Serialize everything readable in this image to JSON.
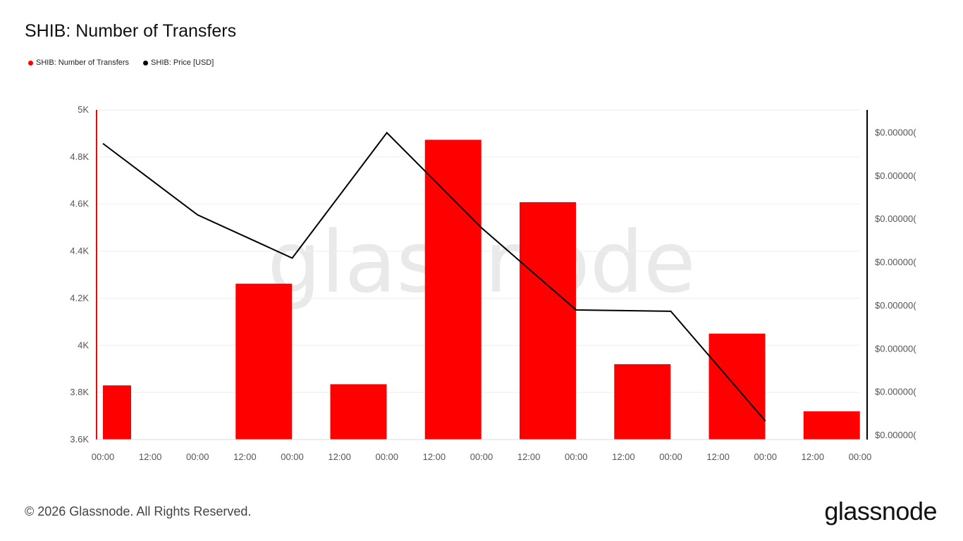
{
  "title": "SHIB: Number of Transfers",
  "legend": [
    {
      "label": "SHIB: Number of Transfers",
      "color": "#ff0000"
    },
    {
      "label": "SHIB: Price [USD]",
      "color": "#000000"
    }
  ],
  "watermark": "glassnode",
  "footer": {
    "copyright": "© 2026 Glassnode. All Rights Reserved.",
    "logo": "glassnode"
  },
  "chart_data": {
    "type": "bar",
    "title": "SHIB: Number of Transfers",
    "x_ticks": [
      "00:00",
      "12:00",
      "00:00",
      "12:00",
      "00:00",
      "12:00",
      "00:00",
      "12:00",
      "00:00",
      "12:00",
      "00:00",
      "12:00",
      "00:00",
      "12:00",
      "00:00",
      "12:00",
      "00:00"
    ],
    "x_range_hours": [
      0,
      192
    ],
    "y_left": {
      "label": "SHIB: Number of Transfers",
      "ylim": [
        3600,
        5000
      ],
      "ticks": [
        {
          "value": 3600,
          "label": "3.6K"
        },
        {
          "value": 3800,
          "label": "3.8K"
        },
        {
          "value": 4000,
          "label": "4K"
        },
        {
          "value": 4200,
          "label": "4.2K"
        },
        {
          "value": 4400,
          "label": "4.4K"
        },
        {
          "value": 4600,
          "label": "4.6K"
        },
        {
          "value": 4800,
          "label": "4.8K"
        },
        {
          "value": 5000,
          "label": "5K"
        }
      ]
    },
    "y_right": {
      "label": "SHIB: Price [USD]",
      "ylim": [
        0,
        7.3
      ],
      "ticks": [
        {
          "value": 0,
          "label": "$0.00000("
        },
        {
          "value": 1,
          "label": "$0.00000("
        },
        {
          "value": 2,
          "label": "$0.00000("
        },
        {
          "value": 3,
          "label": "$0.00000("
        },
        {
          "value": 4,
          "label": "$0.00000("
        },
        {
          "value": 5,
          "label": "$0.00000("
        },
        {
          "value": 6,
          "label": "$0.00000("
        },
        {
          "value": 7,
          "label": "$0.00000("
        }
      ]
    },
    "series": [
      {
        "name": "SHIB: Number of Transfers",
        "type": "bar",
        "color": "#ff0000",
        "points": [
          {
            "x": 0,
            "value": 3830
          },
          {
            "x": 24,
            "value": 4262
          },
          {
            "x": 48,
            "value": 3835
          },
          {
            "x": 72,
            "value": 4873
          },
          {
            "x": 96,
            "value": 4608
          },
          {
            "x": 120,
            "value": 3920
          },
          {
            "x": 144,
            "value": 4050
          },
          {
            "x": 168,
            "value": 3720
          }
        ]
      },
      {
        "name": "SHIB: Price [USD]",
        "type": "line",
        "color": "#000000",
        "points": [
          {
            "x": 0,
            "value": 6.75
          },
          {
            "x": 24,
            "value": 5.1
          },
          {
            "x": 48,
            "value": 4.1
          },
          {
            "x": 72,
            "value": 7.0
          },
          {
            "x": 96,
            "value": 4.8
          },
          {
            "x": 120,
            "value": 2.9
          },
          {
            "x": 144,
            "value": 2.87
          },
          {
            "x": 168,
            "value": 0.33
          }
        ]
      }
    ]
  }
}
